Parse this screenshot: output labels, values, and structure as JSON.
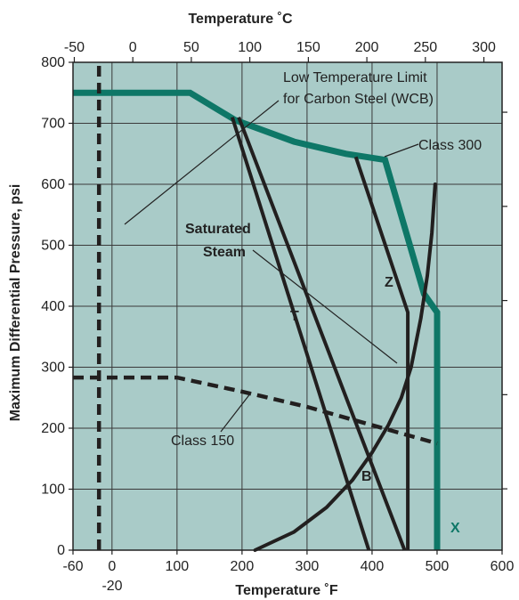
{
  "chart_data": {
    "type": "line",
    "xlabel": "Temperature ˚F",
    "x2label": "Temperature ˚C",
    "ylabel": "Maximum Differential Pressure, psi",
    "xlim": [
      -60,
      600
    ],
    "ylim": [
      0,
      800
    ],
    "x_ticks": [
      -60,
      0,
      100,
      200,
      300,
      400,
      500,
      600
    ],
    "y_ticks": [
      0,
      100,
      200,
      300,
      400,
      500,
      600,
      700,
      800
    ],
    "x2_ticks": [
      -50,
      0,
      50,
      100,
      150,
      200,
      250,
      300
    ],
    "extra_x_tick": "-20",
    "grid": true,
    "background": "#a9cbc8",
    "series": [
      {
        "name": "Class 300",
        "style": "thick-solid",
        "color": "#0e7767",
        "points": [
          [
            -60,
            750
          ],
          [
            120,
            750
          ],
          [
            190,
            705
          ],
          [
            280,
            670
          ],
          [
            360,
            650
          ],
          [
            420,
            640
          ],
          [
            480,
            420
          ],
          [
            500,
            390
          ],
          [
            500,
            0
          ]
        ]
      },
      {
        "name": "Class 150",
        "style": "dashed",
        "color": "#221f1f",
        "points": [
          [
            -60,
            283
          ],
          [
            100,
            283
          ],
          [
            200,
            260
          ],
          [
            300,
            235
          ],
          [
            400,
            205
          ],
          [
            500,
            175
          ]
        ]
      },
      {
        "name": "",
        "style": "dashed",
        "color": "#221f1f",
        "points": [
          [
            -20,
            0
          ],
          [
            -20,
            800
          ]
        ]
      },
      {
        "name": "Saturated Steam",
        "style": "solid",
        "color": "#221f1f",
        "points": [
          [
            220,
            0
          ],
          [
            280,
            30
          ],
          [
            330,
            70
          ],
          [
            370,
            115
          ],
          [
            400,
            160
          ],
          [
            425,
            205
          ],
          [
            445,
            250
          ],
          [
            460,
            300
          ],
          [
            475,
            380
          ],
          [
            485,
            450
          ],
          [
            492,
            520
          ],
          [
            497,
            600
          ]
        ]
      },
      {
        "name": "T",
        "style": "solid",
        "color": "#221f1f",
        "points": [
          [
            185,
            710
          ],
          [
            395,
            0
          ]
        ]
      },
      {
        "name": "B",
        "style": "solid",
        "color": "#221f1f",
        "points": [
          [
            195,
            710
          ],
          [
            450,
            0
          ]
        ]
      },
      {
        "name": "Z",
        "style": "solid",
        "color": "#221f1f",
        "points": [
          [
            375,
            645
          ],
          [
            455,
            390
          ],
          [
            455,
            0
          ]
        ]
      }
    ],
    "annotations": {
      "low_temp_line1": "Low Temperature Limit",
      "low_temp_line2": "for Carbon Steel (WCB)",
      "class300": "Class 300",
      "class150": "Class 150",
      "saturated1": "Saturated",
      "saturated2": "Steam",
      "label_T": "T",
      "label_B": "B",
      "label_Z": "Z",
      "label_X": "X"
    }
  }
}
